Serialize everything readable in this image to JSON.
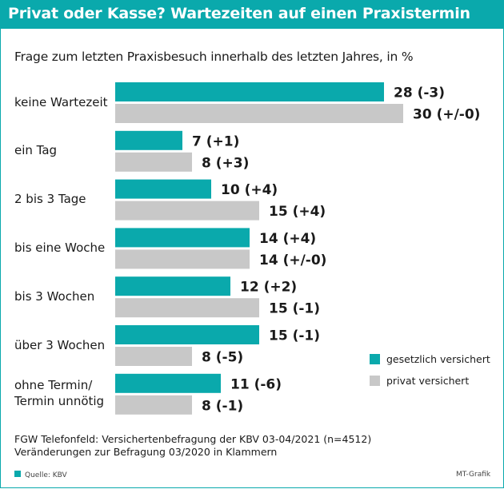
{
  "header": {
    "title": "Privat oder Kasse? Wartezeiten auf einen Praxistermin"
  },
  "subtitle": "Frage zum letzten Praxisbesuch innerhalb des letzten Jahres, in %",
  "colors": {
    "accent": "#0aa9ac",
    "gesetzlich": "#0aa9ac",
    "privat": "#c8c8c8"
  },
  "chart_data": {
    "type": "bar",
    "orientation": "horizontal",
    "title": "Privat oder Kasse? Wartezeiten auf einen Praxistermin",
    "subtitle": "Frage zum letzten Praxisbesuch innerhalb des letzten Jahres, in %",
    "categories": [
      [
        "keine Wartezeit"
      ],
      [
        "ein Tag"
      ],
      [
        "2 bis 3 Tage"
      ],
      [
        "bis eine Woche"
      ],
      [
        "bis 3 Wochen"
      ],
      [
        "über 3 Wochen"
      ],
      [
        "ohne Termin/",
        "Termin unnötig"
      ]
    ],
    "series": [
      {
        "name": "gesetzlich versichert",
        "values": [
          28,
          7,
          10,
          14,
          12,
          15,
          11
        ],
        "labels": [
          "28 (-3)",
          "7 (+1)",
          "10 (+4)",
          "14 (+4)",
          "12 (+2)",
          "15 (-1)",
          "11 (-6)"
        ]
      },
      {
        "name": "privat versichert",
        "values": [
          30,
          8,
          15,
          14,
          15,
          8,
          8
        ],
        "labels": [
          "30 (+/-0)",
          "8 (+3)",
          "15 (+4)",
          "14 (+/-0)",
          "15 (-1)",
          "8 (-5)",
          "8 (-1)"
        ]
      }
    ],
    "xlim": [
      0,
      30
    ],
    "legend_position": "bottom-right",
    "grid": false
  },
  "legend": {
    "gesetzlich": "gesetzlich versichert",
    "privat": "privat versichert"
  },
  "footnote": {
    "line1": "FGW Telefonfeld: Versichertenbefragung der KBV 03-04/2021 (n=4512)",
    "line2": "Veränderungen zur Befragung 03/2020 in Klammern"
  },
  "source": "Quelle: KBV",
  "credit": "MT-Grafik"
}
